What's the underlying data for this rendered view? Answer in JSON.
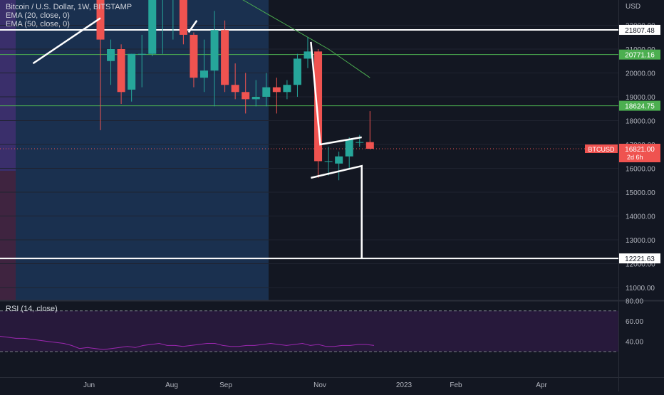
{
  "legend": {
    "title": "Bitcoin / U.S. Dollar, 1W, BITSTAMP",
    "ema20": "EMA (20, close, 0)",
    "ema50": "EMA (50, close, 0)"
  },
  "rsi_legend": "RSI (14, close)",
  "currency": "USD",
  "chart_data": {
    "type": "candlestick",
    "symbol": "BTCUSD",
    "interval": "1W",
    "y_scale": "linear",
    "ylim": [
      10300,
      23500
    ],
    "y_ticks": [
      11000,
      12000,
      13000,
      14000,
      15000,
      16000,
      17000,
      18000,
      19000,
      20000,
      21000,
      22000
    ],
    "y_tick_labels": [
      "11000.00",
      "12000.00",
      "13000.00",
      "14000.00",
      "15000.00",
      "16000.00",
      "17000.00",
      "18000.00",
      "19000.00",
      "20000.00",
      "21000.00",
      "22000.00"
    ],
    "x_labels": [
      "Jun",
      "Aug",
      "Sep",
      "Nov",
      "2023",
      "Feb",
      "Apr"
    ],
    "candles": [
      {
        "o": 23500,
        "h": 23500,
        "l": 17600,
        "c": 21400
      },
      {
        "o": 20500,
        "h": 21400,
        "l": 19500,
        "c": 21000
      },
      {
        "o": 21000,
        "h": 21200,
        "l": 18700,
        "c": 19200
      },
      {
        "o": 19300,
        "h": 20800,
        "l": 18800,
        "c": 20800
      },
      {
        "o": 20800,
        "h": 21600,
        "l": 19400,
        "c": 20800
      },
      {
        "o": 20800,
        "h": 23500,
        "l": 20700,
        "c": 23500
      },
      {
        "o": 23500,
        "h": 23500,
        "l": 20800,
        "c": 23500
      },
      {
        "o": 23500,
        "h": 23500,
        "l": 21400,
        "c": 23500
      },
      {
        "o": 23500,
        "h": 23500,
        "l": 21200,
        "c": 21600
      },
      {
        "o": 21600,
        "h": 21700,
        "l": 19400,
        "c": 19800
      },
      {
        "o": 19800,
        "h": 21400,
        "l": 19200,
        "c": 20100
      },
      {
        "o": 20100,
        "h": 22600,
        "l": 18600,
        "c": 21800
      },
      {
        "o": 21800,
        "h": 22200,
        "l": 19200,
        "c": 19500
      },
      {
        "o": 19500,
        "h": 20400,
        "l": 18900,
        "c": 19200
      },
      {
        "o": 19200,
        "h": 20000,
        "l": 18300,
        "c": 18900
      },
      {
        "o": 18900,
        "h": 19700,
        "l": 18600,
        "c": 19000
      },
      {
        "o": 19000,
        "h": 20000,
        "l": 18600,
        "c": 19400
      },
      {
        "o": 19400,
        "h": 19800,
        "l": 18300,
        "c": 19200
      },
      {
        "o": 19200,
        "h": 19700,
        "l": 18900,
        "c": 19500
      },
      {
        "o": 19500,
        "h": 20800,
        "l": 19000,
        "c": 20600
      },
      {
        "o": 20600,
        "h": 21500,
        "l": 20200,
        "c": 20900
      },
      {
        "o": 20900,
        "h": 21000,
        "l": 15600,
        "c": 16300
      },
      {
        "o": 16300,
        "h": 16900,
        "l": 15700,
        "c": 16300
      },
      {
        "o": 16200,
        "h": 16700,
        "l": 15500,
        "c": 16500
      },
      {
        "o": 16500,
        "h": 17300,
        "l": 16000,
        "c": 17200
      },
      {
        "o": 17100,
        "h": 17400,
        "l": 16900,
        "c": 17100
      },
      {
        "o": 17100,
        "h": 18400,
        "l": 16800,
        "c": 16821
      }
    ],
    "ema50": [
      {
        "i": 12,
        "v": 23500
      },
      {
        "i": 14,
        "v": 23000
      },
      {
        "i": 16,
        "v": 22500
      },
      {
        "i": 18,
        "v": 22000
      },
      {
        "i": 20,
        "v": 21500
      },
      {
        "i": 22,
        "v": 21000
      },
      {
        "i": 24,
        "v": 20400
      },
      {
        "i": 26,
        "v": 19800
      }
    ],
    "horizontal_levels": [
      {
        "price": 21807.48,
        "label": "21807.48",
        "color": "#ffffff",
        "style": "white"
      },
      {
        "price": 20771.16,
        "label": "20771.16",
        "color": "#4caf50",
        "style": "green"
      },
      {
        "price": 18624.75,
        "label": "18624.75",
        "color": "#4caf50",
        "style": "green"
      },
      {
        "price": 12221.63,
        "label": "12221.63",
        "color": "#ffffff",
        "style": "white"
      }
    ],
    "current_price": {
      "label": "BTCUSD",
      "value": "16821.00",
      "countdown": "2d 6h",
      "price": 16821
    },
    "drawings": [
      {
        "points": [
          [
            -6.5,
            20400
          ],
          [
            0,
            22300
          ]
        ]
      },
      {
        "points": [
          [
            8.5,
            21700
          ],
          [
            9.3,
            22200
          ]
        ]
      },
      {
        "points": [
          [
            20.3,
            21300
          ],
          [
            21.2,
            17000
          ],
          [
            25.2,
            17300
          ]
        ]
      },
      {
        "points": [
          [
            20.3,
            15600
          ],
          [
            25.2,
            16100
          ],
          [
            25.2,
            12221.63
          ]
        ]
      }
    ],
    "rsi": {
      "ylim": [
        28,
        90
      ],
      "y_ticks": [
        40,
        60,
        80
      ],
      "y_tick_labels": [
        "40.00",
        "60.00",
        "80.00"
      ],
      "upper_band": 70,
      "lower_band": 30,
      "values": [
        45,
        44,
        43,
        43,
        42,
        41,
        40,
        39,
        38,
        36,
        33,
        34,
        33,
        32,
        33,
        34,
        35,
        34,
        36,
        37,
        38,
        36,
        36,
        35,
        36,
        37,
        38,
        38,
        36,
        35,
        35,
        36,
        36,
        37,
        38,
        37,
        36,
        37,
        38,
        36,
        37,
        35,
        35,
        36,
        36,
        37,
        37,
        36
      ]
    },
    "colors": {
      "up": "#26a69a",
      "down": "#ef5350",
      "background": "#131722",
      "highlight": "#1e3a5f",
      "ema50": "#4caf50",
      "rsi": "#9c27b0"
    }
  }
}
